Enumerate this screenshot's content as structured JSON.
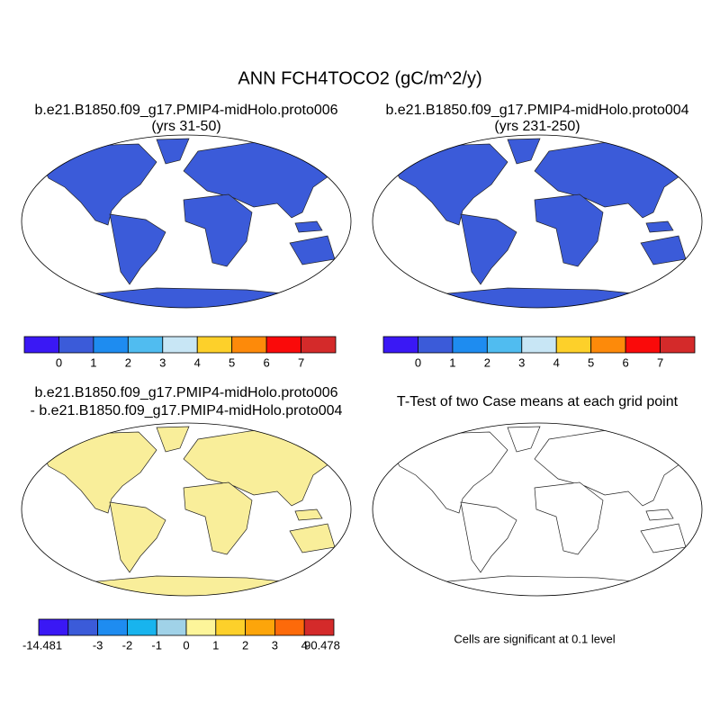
{
  "title": "ANN FCH4TOCO2 (gC/m^2/y)",
  "panels": [
    {
      "title": [
        "b.e21.B1850.f09_g17.PMIP4-midHolo.proto006",
        "(yrs 31-50)"
      ]
    },
    {
      "title": [
        "b.e21.B1850.f09_g17.PMIP4-midHolo.proto004",
        "(yrs 231-250)"
      ]
    },
    {
      "title": [
        "b.e21.B1850.f09_g17.PMIP4-midHolo.proto006",
        "- b.e21.B1850.f09_g17.PMIP4-midHolo.proto004"
      ]
    },
    {
      "title": [
        "T-Test of two Case means at each grid point"
      ]
    }
  ],
  "colorbars": [
    {
      "colors": [
        "#3a18f5",
        "#3b5bd9",
        "#1e8cf0",
        "#50bcf0",
        "#c8e6f5",
        "#fdd02a",
        "#fd8a0a",
        "#fa0a0a",
        "#d42a2a"
      ],
      "labels": [
        "0",
        "1",
        "2",
        "3",
        "4",
        "5",
        "6",
        "7"
      ]
    },
    {
      "colors": [
        "#3a18f5",
        "#3b5bd9",
        "#1e8cf0",
        "#50bcf0",
        "#c8e6f5",
        "#fdd02a",
        "#fd8a0a",
        "#fa0a0a",
        "#d42a2a"
      ],
      "labels": [
        "0",
        "1",
        "2",
        "3",
        "4",
        "5",
        "6",
        "7"
      ]
    },
    {
      "colors": [
        "#3a18f5",
        "#3b5bd9",
        "#1e8cf0",
        "#18b4ee",
        "#a0d2e8",
        "#fdf59a",
        "#fdd02a",
        "#fda50a",
        "#fd6a0a",
        "#d42a2a"
      ],
      "labels": [
        "-14.481",
        "-3",
        "-2",
        "-1",
        "0",
        "1",
        "2",
        "3",
        "4",
        "90.478"
      ]
    }
  ],
  "note": "Cells are significant at 0.1 level"
}
